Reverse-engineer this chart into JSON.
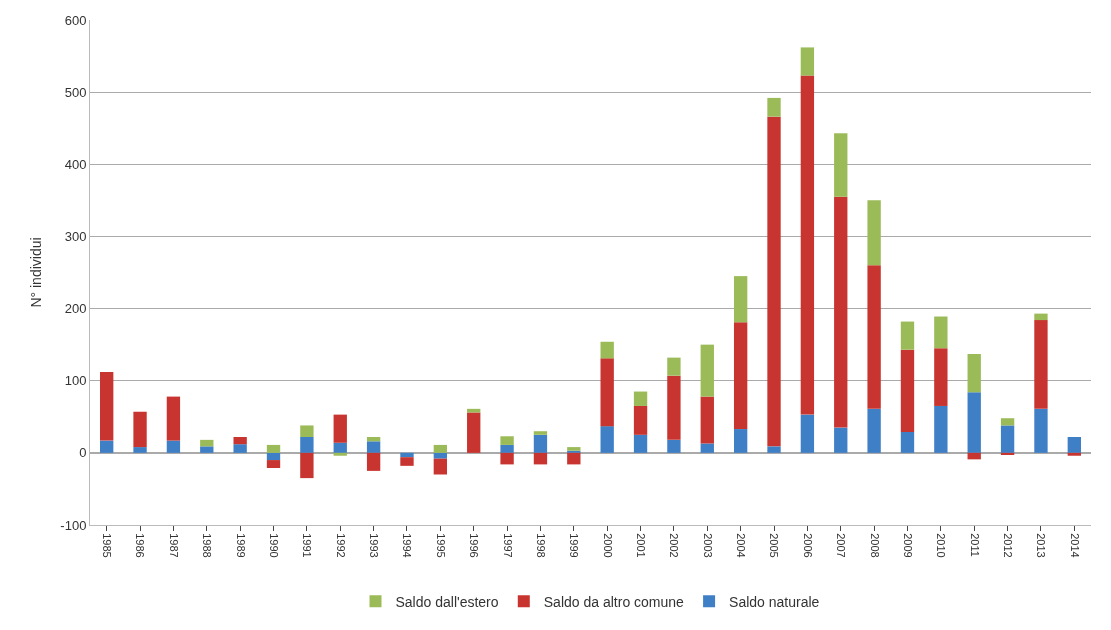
{
  "chart_data": {
    "type": "bar",
    "stacked": true,
    "ylabel": "N° individui",
    "categories": [
      "1985",
      "1986",
      "1987",
      "1988",
      "1989",
      "1990",
      "1991",
      "1992",
      "1993",
      "1994",
      "1995",
      "1996",
      "1997",
      "1998",
      "1999",
      "2000",
      "2001",
      "2002",
      "2003",
      "2004",
      "2005",
      "2006",
      "2007",
      "2008",
      "2009",
      "2010",
      "2011",
      "2012",
      "2013",
      "2014"
    ],
    "series": [
      {
        "name": "Saldo naturale",
        "color": "#3f7fc6",
        "values": [
          17,
          8,
          17,
          9,
          12,
          -10,
          22,
          14,
          16,
          -6,
          -8,
          0,
          11,
          25,
          3,
          37,
          25,
          18,
          13,
          33,
          9,
          53,
          35,
          61,
          29,
          65,
          84,
          38,
          61,
          22
        ]
      },
      {
        "name": "Saldo da altro comune",
        "color": "#c8342f",
        "values": [
          95,
          49,
          61,
          0,
          10,
          -11,
          -35,
          39,
          -25,
          -12,
          -22,
          56,
          -16,
          -16,
          -16,
          94,
          40,
          89,
          65,
          148,
          457,
          470,
          320,
          199,
          114,
          80,
          -9,
          -3,
          123,
          -4
        ]
      },
      {
        "name": "Saldo dall'estero",
        "color": "#9bbb59",
        "values": [
          0,
          0,
          0,
          9,
          0,
          11,
          16,
          -4,
          6,
          0,
          11,
          5,
          12,
          5,
          5,
          23,
          20,
          25,
          72,
          64,
          26,
          39,
          88,
          90,
          39,
          44,
          53,
          10,
          9,
          0
        ]
      }
    ],
    "ylim": [
      -100,
      600
    ],
    "yticks": [
      -100,
      0,
      100,
      200,
      300,
      400,
      500,
      600
    ],
    "grid": "y",
    "legend": "bottom"
  }
}
